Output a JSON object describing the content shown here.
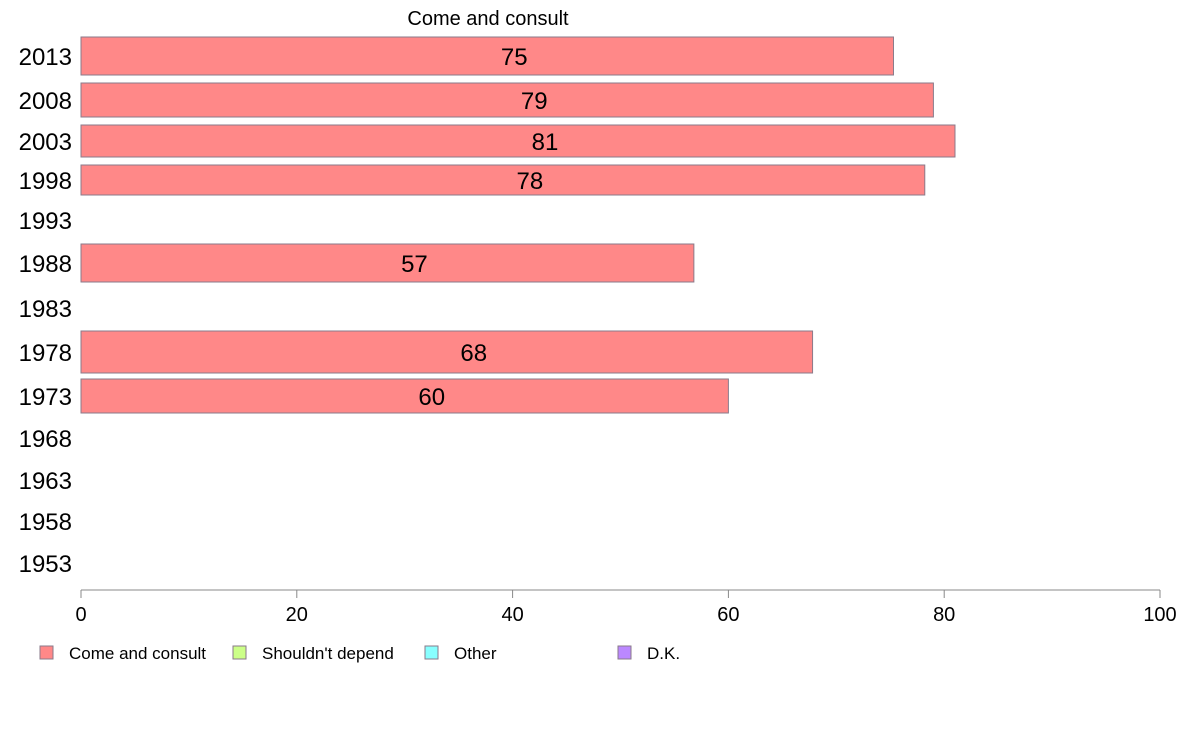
{
  "chart_data": {
    "type": "bar",
    "orientation": "horizontal",
    "title": "Come and consult",
    "xlabel": "",
    "ylabel": "",
    "xlim": [
      0,
      100
    ],
    "xticks": [
      0,
      20,
      40,
      60,
      80,
      100
    ],
    "grid": false,
    "legend_position": "bottom",
    "categories": [
      "2013",
      "2008",
      "2003",
      "1998",
      "1993",
      "1988",
      "1983",
      "1978",
      "1973",
      "1968",
      "1963",
      "1958",
      "1953"
    ],
    "series": [
      {
        "name": "Come and consult",
        "color": "#ff8888",
        "values": [
          75.3,
          79,
          81,
          78.2,
          null,
          56.8,
          null,
          67.8,
          60,
          null,
          null,
          null,
          null
        ],
        "labels": [
          "75",
          "79",
          "81",
          "78",
          "",
          "57",
          "",
          "68",
          "60",
          "",
          "",
          "",
          ""
        ]
      }
    ],
    "legend": [
      {
        "name": "Come and consult",
        "color": "#ff8888"
      },
      {
        "name": "Shouldn't depend",
        "color": "#ccff88"
      },
      {
        "name": "Other",
        "color": "#88ffff"
      },
      {
        "name": "D.K.",
        "color": "#bb88ff"
      }
    ]
  }
}
